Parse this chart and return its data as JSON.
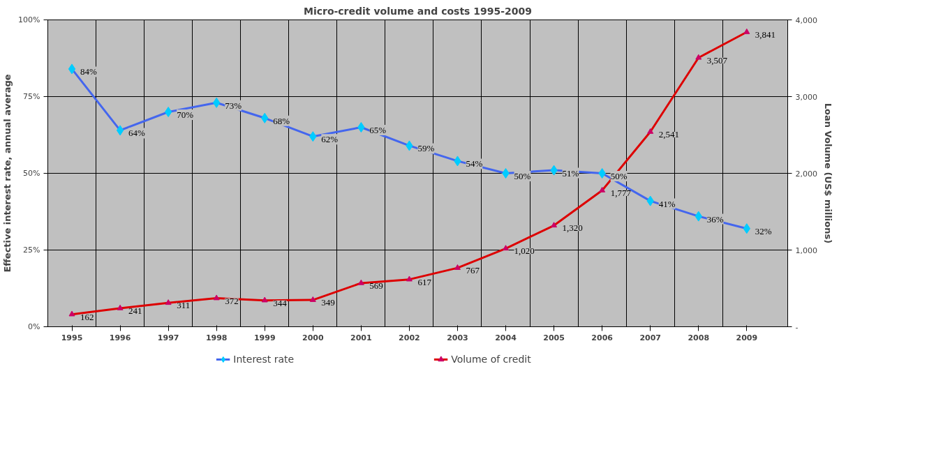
{
  "chart_data": {
    "type": "line",
    "title": "Micro-credit volume and costs 1995-2009",
    "ylabel": "Effective interest rate, annual average",
    "y2label": "Loan Volume (US$ millions)",
    "categories": [
      "1995",
      "1996",
      "1997",
      "1998",
      "1999",
      "2000",
      "2001",
      "2002",
      "2003",
      "2004",
      "2005",
      "2006",
      "2007",
      "2008",
      "2009"
    ],
    "series": [
      {
        "name": "Interest rate",
        "color": "#4466ee",
        "marker": "diamond",
        "values": [
          84,
          64,
          70,
          73,
          68,
          62,
          65,
          59,
          54,
          50,
          51,
          50,
          41,
          36,
          32
        ],
        "value_labels": [
          "84%",
          "64%",
          "70%",
          "73%",
          "68%",
          "62%",
          "65%",
          "59%",
          "54%",
          "50%",
          "51%",
          "50%",
          "41%",
          "36%",
          "32%"
        ]
      },
      {
        "name": "Volume of credit",
        "color": "#dd0000",
        "marker": "triangle",
        "axis": "y2",
        "values": [
          162,
          241,
          311,
          372,
          344,
          349,
          569,
          617,
          767,
          1020,
          1320,
          1777,
          2541,
          3507,
          3841
        ],
        "value_labels": [
          "162",
          "241",
          "311",
          "372",
          "344",
          "349",
          "569",
          "617",
          "767",
          "1,020",
          "1,320",
          "1,777",
          "2,541",
          "3,507",
          "3,841"
        ]
      }
    ],
    "ylim": [
      0,
      100
    ],
    "yticks": [
      {
        "value": 0,
        "label": "0%"
      },
      {
        "value": 25,
        "label": "25%"
      },
      {
        "value": 50,
        "label": "50%"
      },
      {
        "value": 75,
        "label": "75%"
      },
      {
        "value": 100,
        "label": "100%"
      }
    ],
    "y2lim": [
      0,
      4000
    ],
    "y2ticks": [
      {
        "value": 0,
        "label": "-"
      },
      {
        "value": 1000,
        "label": "1,000"
      },
      {
        "value": 2000,
        "label": "2,000"
      },
      {
        "value": 3000,
        "label": "3,000"
      },
      {
        "value": 4000,
        "label": "4,000"
      }
    ],
    "grid": true,
    "legend": "bottom"
  }
}
